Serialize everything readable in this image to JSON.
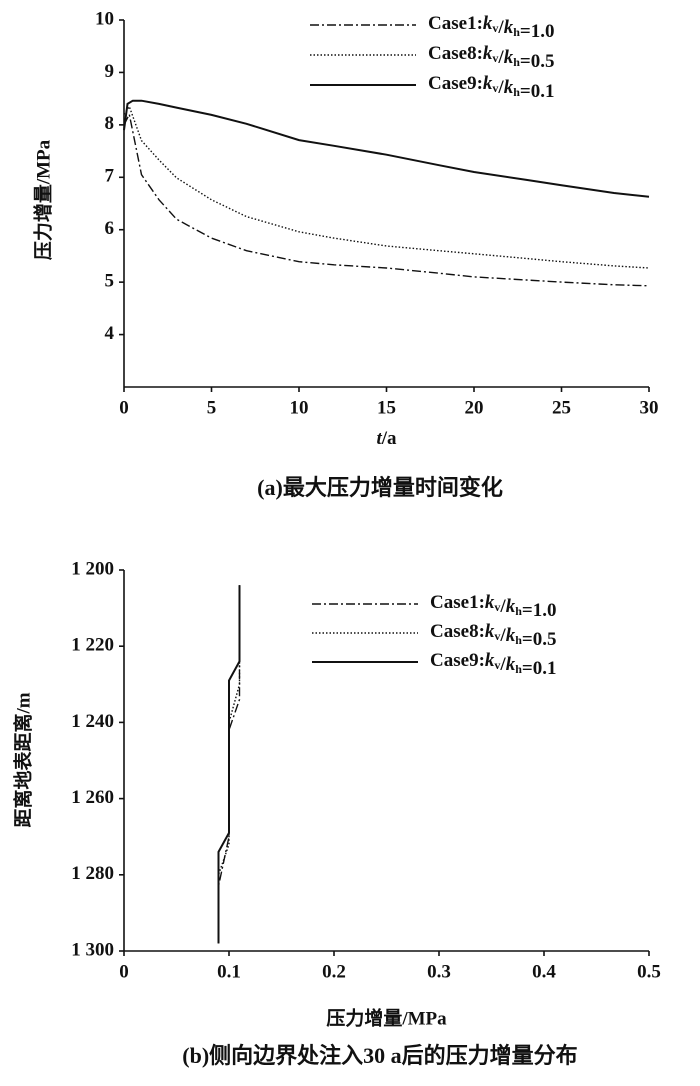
{
  "chart_data": [
    {
      "type": "line",
      "xlabel": "t/a",
      "ylabel": "压力增量/MPa",
      "caption": "(a)最大压力增量时间变化",
      "xlim": [
        0,
        30
      ],
      "xticks": [
        0,
        5,
        10,
        15,
        20,
        25,
        30
      ],
      "ylim": [
        3,
        10
      ],
      "yticks": [
        4,
        5,
        6,
        7,
        8,
        9,
        10
      ],
      "series": [
        {
          "name": "Case1:kv/kh=1.0",
          "color": "#111111",
          "style": "dashdot",
          "x": [
            0,
            0.3,
            1,
            2,
            3,
            5,
            7,
            10,
            12,
            15,
            18,
            20,
            23,
            25,
            28,
            30
          ],
          "values": [
            8.0,
            8.2,
            7.05,
            6.57,
            6.2,
            5.84,
            5.6,
            5.39,
            5.33,
            5.27,
            5.17,
            5.1,
            5.04,
            5.0,
            4.95,
            4.93
          ]
        },
        {
          "name": "Case8:kv/kh=0.5",
          "color": "#111111",
          "style": "dotted",
          "x": [
            0,
            0.3,
            1,
            2,
            3,
            5,
            7,
            10,
            12,
            15,
            18,
            20,
            23,
            25,
            28,
            30
          ],
          "values": [
            8.2,
            8.35,
            7.7,
            7.33,
            6.99,
            6.57,
            6.25,
            5.96,
            5.84,
            5.69,
            5.6,
            5.54,
            5.45,
            5.39,
            5.31,
            5.27
          ]
        },
        {
          "name": "Case9:kv/kh=0.1",
          "color": "#111111",
          "style": "solid",
          "x": [
            0,
            0.2,
            0.5,
            1,
            2,
            3,
            5,
            7,
            10,
            12,
            15,
            18,
            20,
            23,
            25,
            28,
            30
          ],
          "values": [
            7.9,
            8.4,
            8.46,
            8.46,
            8.4,
            8.33,
            8.19,
            8.02,
            7.71,
            7.6,
            7.43,
            7.23,
            7.1,
            6.95,
            6.85,
            6.7,
            6.63
          ]
        }
      ]
    },
    {
      "type": "line",
      "xlabel": "压力增量/MPa",
      "ylabel": "距离地表距离/m",
      "caption": "(b)侧向边界处注入30 a后的压力增量分布",
      "xlim": [
        0,
        0.5
      ],
      "xticks": [
        0,
        0.1,
        0.2,
        0.3,
        0.4,
        0.5
      ],
      "ylim": [
        1300,
        1200
      ],
      "yticks": [
        {
          "value": 1200,
          "label": "1 200"
        },
        {
          "value": 1220,
          "label": "1 220"
        },
        {
          "value": 1240,
          "label": "1 240"
        },
        {
          "value": 1260,
          "label": "1 260"
        },
        {
          "value": 1280,
          "label": "1 280"
        },
        {
          "value": 1300,
          "label": "1 300"
        }
      ],
      "series": [
        {
          "name": "Case1:kv/kh=1.0",
          "color": "#111111",
          "style": "dashdot",
          "x": [
            0.11,
            0.11,
            0.1,
            0.1,
            0.09,
            0.09
          ],
          "values": [
            1204,
            1234,
            1242,
            1270,
            1283,
            1298
          ]
        },
        {
          "name": "Case8:kv/kh=0.5",
          "color": "#111111",
          "style": "dotted",
          "x": [
            0.11,
            0.11,
            0.1,
            0.1,
            0.09,
            0.09
          ],
          "values": [
            1204,
            1230,
            1240,
            1272,
            1280,
            1298
          ]
        },
        {
          "name": "Case9:kv/kh=0.1",
          "color": "#111111",
          "style": "solid",
          "x": [
            0.11,
            0.11,
            0.1,
            0.1,
            0.09,
            0.09
          ],
          "values": [
            1204,
            1224,
            1229,
            1269,
            1274,
            1298
          ]
        }
      ]
    }
  ]
}
